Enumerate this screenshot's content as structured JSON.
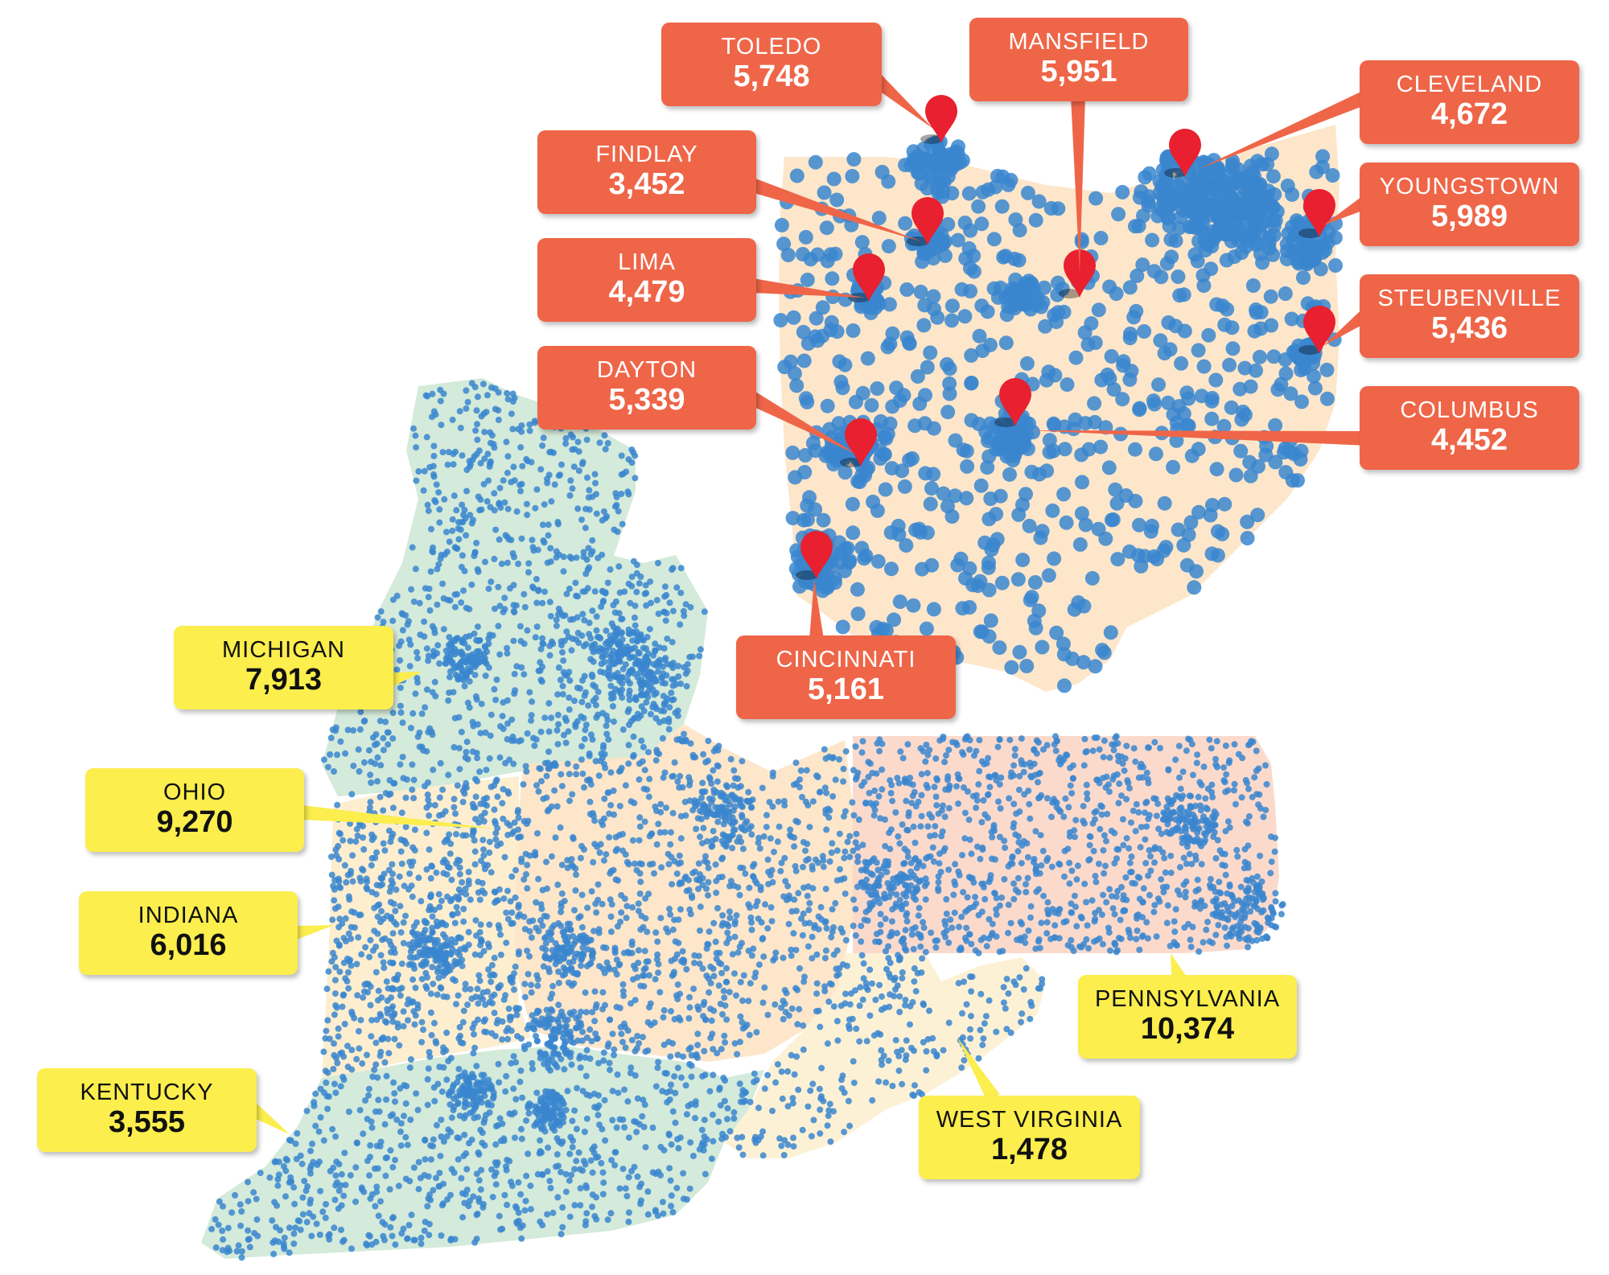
{
  "colors": {
    "dot": "#3a86cf",
    "pin": "#e8202f",
    "city_callout": "#ef6548",
    "state_callout": "#fbee4d",
    "michigan": "#cfe8d6",
    "ohio": "#fde3c4",
    "indiana": "#fdeccb",
    "kentucky": "#cfe8d6",
    "pennsylvania": "#fbd6c6",
    "west_virginia": "#fdf0d0"
  },
  "cities": [
    {
      "id": "toledo",
      "name": "TOLEDO",
      "count": "5,748"
    },
    {
      "id": "mansfield",
      "name": "MANSFIELD",
      "count": "5,951"
    },
    {
      "id": "cleveland",
      "name": "CLEVELAND",
      "count": "4,672"
    },
    {
      "id": "findlay",
      "name": "FINDLAY",
      "count": "3,452"
    },
    {
      "id": "youngstown",
      "name": "YOUNGSTOWN",
      "count": "5,989"
    },
    {
      "id": "lima",
      "name": "LIMA",
      "count": "4,479"
    },
    {
      "id": "steubenville",
      "name": "STEUBENVILLE",
      "count": "5,436"
    },
    {
      "id": "dayton",
      "name": "DAYTON",
      "count": "5,339"
    },
    {
      "id": "columbus",
      "name": "COLUMBUS",
      "count": "4,452"
    },
    {
      "id": "cincinnati",
      "name": "CINCINNATI",
      "count": "5,161"
    }
  ],
  "states": [
    {
      "id": "michigan",
      "name": "MICHIGAN",
      "count": "7,913"
    },
    {
      "id": "ohio",
      "name": "OHIO",
      "count": "9,270"
    },
    {
      "id": "indiana",
      "name": "INDIANA",
      "count": "6,016"
    },
    {
      "id": "kentucky",
      "name": "KENTUCKY",
      "count": "3,555"
    },
    {
      "id": "pennsylvania",
      "name": "PENNSYLVANIA",
      "count": "10,374"
    },
    {
      "id": "west_virginia",
      "name": "WEST VIRGINIA",
      "count": "1,478"
    }
  ]
}
